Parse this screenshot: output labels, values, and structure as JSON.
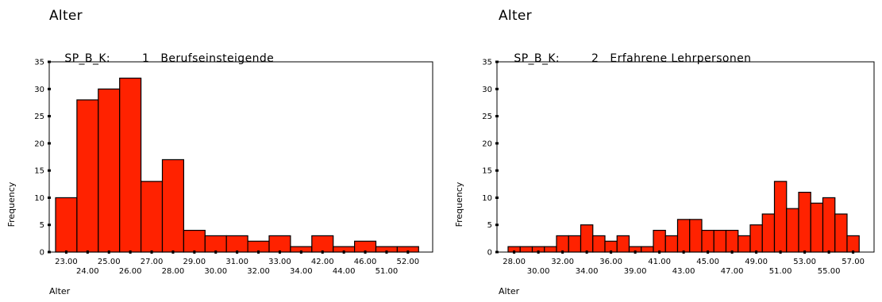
{
  "colors": {
    "bar_fill": "#ff2200",
    "bar_stroke": "#000000",
    "axis": "#000000"
  },
  "chart_data": [
    {
      "type": "bar",
      "title": "Alter",
      "split_variable": "SP_B_K:",
      "split_code": "1",
      "split_label": "Berufseinsteigende",
      "xlabel": "Alter",
      "ylabel": "Frequency",
      "ylim": [
        0,
        35
      ],
      "yticks": [
        0,
        5,
        10,
        15,
        20,
        25,
        30,
        35
      ],
      "categories": [
        "23.00",
        "24.00",
        "25.00",
        "26.00",
        "27.00",
        "28.00",
        "29.00",
        "30.00",
        "31.00",
        "32.00",
        "33.00",
        "34.00",
        "42.00",
        "44.00",
        "46.00",
        "51.00",
        "52.00"
      ],
      "values": [
        10,
        28,
        30,
        32,
        13,
        17,
        4,
        3,
        3,
        2,
        3,
        1,
        3,
        1,
        2,
        1,
        1
      ]
    },
    {
      "type": "bar",
      "title": "Alter",
      "split_variable": "SP_B_K:",
      "split_code": "2",
      "split_label": "Erfahrene Lehrpersonen",
      "xlabel": "Alter",
      "ylabel": "Frequency",
      "ylim": [
        0,
        35
      ],
      "yticks": [
        0,
        5,
        10,
        15,
        20,
        25,
        30,
        35
      ],
      "categories": [
        "28.00",
        "29.00",
        "30.00",
        "31.00",
        "32.00",
        "33.00",
        "34.00",
        "35.00",
        "36.00",
        "37.00",
        "38.00",
        "39.00",
        "41.00",
        "42.00",
        "43.00",
        "44.00",
        "45.00",
        "46.00",
        "47.00",
        "48.00",
        "49.00",
        "50.00",
        "51.00",
        "52.00",
        "53.00",
        "54.00",
        "55.00",
        "56.00",
        "57.00"
      ],
      "values": [
        1,
        1,
        1,
        1,
        3,
        3,
        5,
        3,
        2,
        3,
        1,
        1,
        4,
        3,
        6,
        6,
        4,
        4,
        4,
        3,
        5,
        7,
        13,
        8,
        11,
        9,
        10,
        7,
        3
      ],
      "visible_tick_labels": [
        "28.00",
        "30.00",
        "32.00",
        "34.00",
        "36.00",
        "39.00",
        "41.00",
        "43.00",
        "45.00",
        "47.00",
        "49.00",
        "51.00",
        "53.00",
        "55.00",
        "57.00"
      ]
    }
  ]
}
